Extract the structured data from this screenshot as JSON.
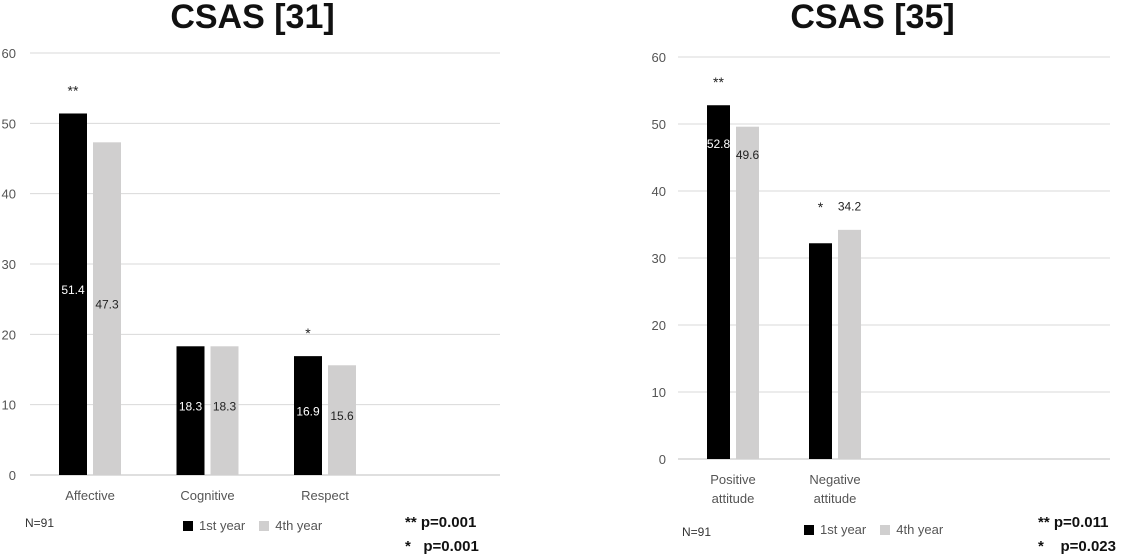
{
  "chart_data": [
    {
      "type": "bar",
      "title": "CSAS [31]",
      "categories": [
        "Affective",
        "Cognitive",
        "Respect"
      ],
      "series": [
        {
          "name": "1st year",
          "values": [
            51.4,
            18.3,
            16.9
          ],
          "color": "#000000"
        },
        {
          "name": "4th year",
          "values": [
            47.3,
            18.3,
            15.6
          ],
          "color": "#d0cfcf"
        }
      ],
      "yticks": [
        "0",
        "10",
        "20",
        "30",
        "40",
        "50",
        "60"
      ],
      "ylim": [
        0,
        60
      ],
      "grid": true,
      "legend": "bottom",
      "significance": [
        "**",
        "",
        "*"
      ],
      "footnote_n": "N=91",
      "pvalues": [
        "** p=0.001",
        "*   p=0.001"
      ]
    },
    {
      "type": "bar",
      "title": "CSAS [35]",
      "categories": [
        [
          "Positive",
          "attitude"
        ],
        [
          "Negative",
          "attitude"
        ]
      ],
      "series": [
        {
          "name": "1st year",
          "values": [
            52.8,
            32.2
          ],
          "color": "#000000"
        },
        {
          "name": "4th year",
          "values": [
            49.6,
            34.2
          ],
          "color": "#d0cfcf"
        }
      ],
      "yticks": [
        "0",
        "10",
        "20",
        "30",
        "40",
        "50",
        "60"
      ],
      "ylim": [
        0,
        60
      ],
      "grid": true,
      "legend": "bottom",
      "significance": [
        "**",
        "*"
      ],
      "footnote_n": "N=91",
      "pvalues": [
        "** p=0.011",
        "*    p=0.023"
      ]
    }
  ]
}
